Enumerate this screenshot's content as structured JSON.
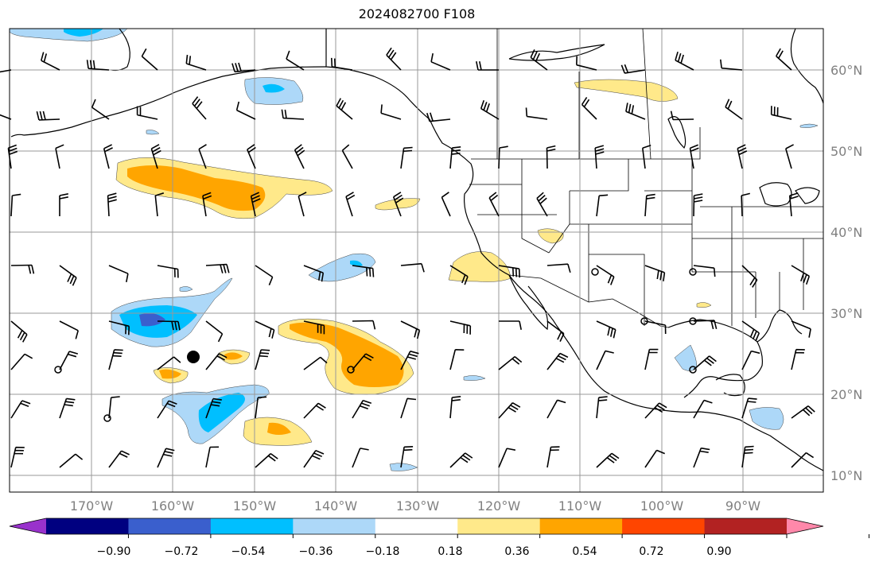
{
  "title": "2024082700 F108",
  "map": {
    "lon_labels": [
      "170°W",
      "160°W",
      "150°W",
      "140°W",
      "130°W",
      "120°W",
      "110°W",
      "100°W",
      "90°W"
    ],
    "lat_labels": [
      "60°N",
      "50°N",
      "40°N",
      "30°N",
      "20°N",
      "10°N"
    ],
    "grid": true
  },
  "colorbar": {
    "ticks": [
      "−0.90",
      "−0.72",
      "−0.54",
      "−0.36",
      "−0.18",
      "0.18",
      "0.36",
      "0.54",
      "0.72",
      "0.90"
    ],
    "colors": [
      "#9932cc",
      "#000080",
      "#3a5fcd",
      "#00bfff",
      "#add8f8",
      "#ffffff",
      "#ffe98a",
      "#ffa500",
      "#ff4500",
      "#b22222",
      "#ff88aa"
    ],
    "extend": "both"
  }
}
